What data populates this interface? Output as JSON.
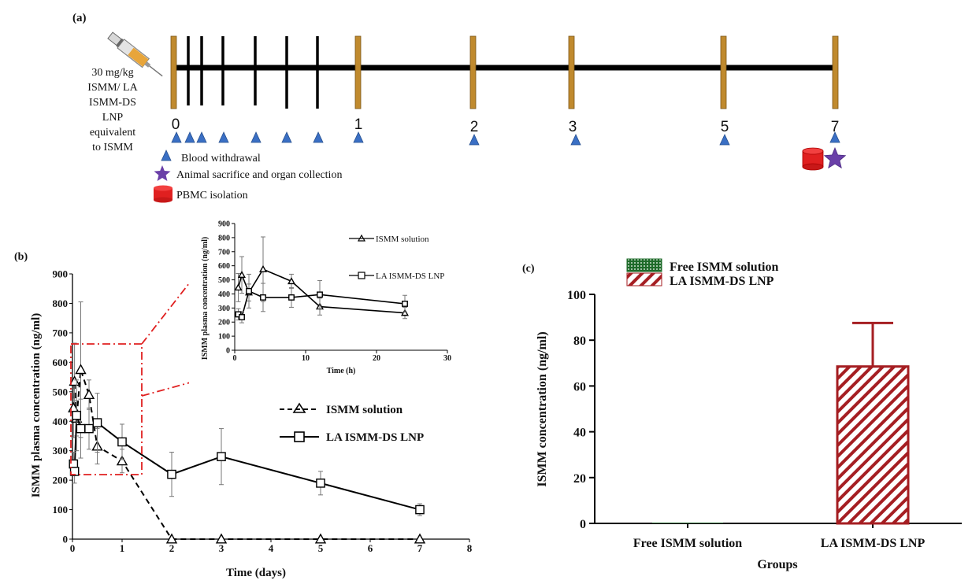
{
  "panel_a": {
    "label": "(a)",
    "dose_lines": [
      "30 mg/kg",
      "ISMM/ LA",
      "ISMM-DS",
      "LNP",
      "equivalent",
      "to ISMM"
    ],
    "day_labels": [
      "0",
      "1",
      "2",
      "3",
      "5",
      "7"
    ],
    "legend": {
      "blood": "Blood withdrawal",
      "sacrifice": "Animal sacrifice and organ collection",
      "pbmc": "PBMC isolation"
    },
    "icons": {
      "syringe": "syringe-icon",
      "triangle": "blood-drop-triangle-icon",
      "star": "star-icon",
      "cylinder": "tube-icon"
    },
    "colors": {
      "gold": "#C08A2E",
      "blue": "#3A6FC4",
      "purple": "#6A3FA8",
      "red": "#E02020"
    }
  },
  "chart_data": [
    {
      "type": "line",
      "panel_label": "(b)",
      "title": "",
      "xlabel": "Time (days)",
      "ylabel": "ISMM  plasma  concentration  (ng/ml)",
      "xlim": [
        0,
        8
      ],
      "ylim": [
        0,
        900
      ],
      "xticks": [
        0,
        1,
        2,
        3,
        4,
        5,
        6,
        7,
        8
      ],
      "yticks": [
        0,
        100,
        200,
        300,
        400,
        500,
        600,
        700,
        800,
        900
      ],
      "legend_placement": "right",
      "series": [
        {
          "name": "ISMM solution",
          "style": "dashed-triangle",
          "x": [
            0.0208,
            0.0417,
            0.0833,
            0.1667,
            0.3333,
            0.5,
            1,
            2,
            3,
            5,
            7
          ],
          "y": [
            445,
            535,
            410,
            575,
            490,
            315,
            265,
            0,
            0,
            0,
            0
          ],
          "err": [
            100,
            130,
            60,
            230,
            50,
            60,
            40,
            0,
            0,
            0,
            0
          ]
        },
        {
          "name": "LA ISMM-DS LNP",
          "style": "solid-square",
          "x": [
            0.0208,
            0.0417,
            0.0833,
            0.1667,
            0.3333,
            0.5,
            1,
            2,
            3,
            5,
            7
          ],
          "y": [
            255,
            230,
            420,
            375,
            375,
            395,
            330,
            220,
            280,
            190,
            100
          ],
          "err": [
            40,
            40,
            120,
            100,
            70,
            100,
            60,
            75,
            95,
            40,
            20
          ]
        }
      ]
    },
    {
      "type": "line",
      "panel_label": "inset",
      "title": "",
      "xlabel": "Time (h)",
      "ylabel": "ISMM plasma concentration (ng/ml)",
      "xlim": [
        0,
        30
      ],
      "ylim": [
        0,
        900
      ],
      "xticks": [
        0,
        10,
        20,
        30
      ],
      "yticks": [
        0,
        100,
        200,
        300,
        400,
        500,
        600,
        700,
        800,
        900
      ],
      "legend_placement": "top-right",
      "series": [
        {
          "name": "ISMM solution",
          "style": "solid-triangle",
          "x": [
            0.5,
            1,
            2,
            4,
            8,
            12,
            24
          ],
          "y": [
            445,
            535,
            410,
            575,
            490,
            310,
            265
          ],
          "err": [
            100,
            130,
            60,
            230,
            50,
            60,
            40
          ]
        },
        {
          "name": "LA ISMM-DS LNP",
          "style": "solid-square",
          "x": [
            0.5,
            1,
            2,
            4,
            8,
            12,
            24
          ],
          "y": [
            255,
            235,
            420,
            375,
            375,
            395,
            330
          ],
          "err": [
            40,
            40,
            120,
            100,
            70,
            100,
            60
          ]
        }
      ]
    },
    {
      "type": "bar",
      "panel_label": "(c)",
      "title": "",
      "xlabel": "Groups",
      "ylabel": "ISMM concentration (ng/ml)",
      "ylim": [
        0,
        100
      ],
      "yticks": [
        0,
        20,
        40,
        60,
        80,
        100
      ],
      "categories": [
        "Free ISMM solution",
        "LA ISMM-DS LNP"
      ],
      "values": [
        0,
        68.5
      ],
      "err": [
        0,
        19
      ],
      "legend": [
        "Free ISMM solution",
        "LA ISMM-DS LNP"
      ],
      "legend_placement": "top",
      "colors": {
        "free": "#1E6B2A",
        "lnp": "#A51E22"
      }
    }
  ]
}
